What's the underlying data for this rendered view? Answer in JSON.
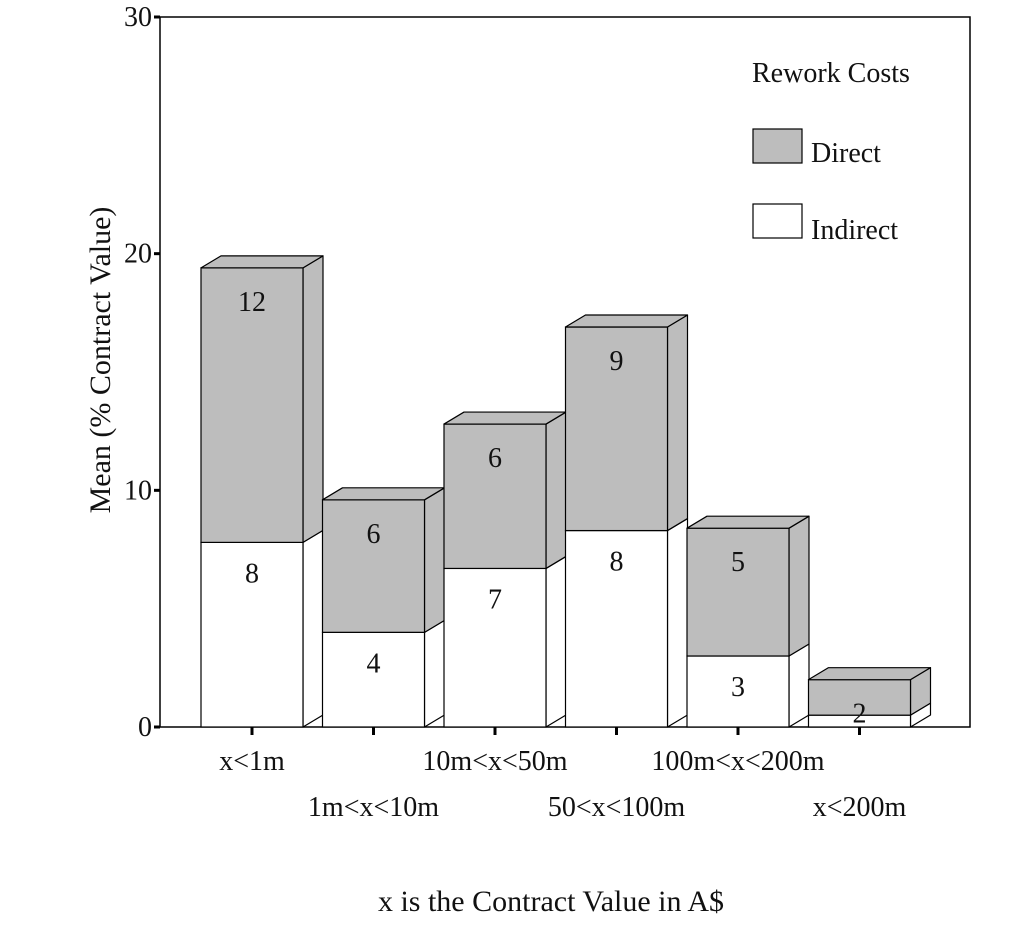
{
  "chart_data": {
    "type": "bar",
    "stacked": true,
    "style": "3d",
    "xlabel": "x is the Contract Value in A$",
    "ylabel": "Mean (% Contract Value)",
    "ylim": [
      0,
      30
    ],
    "yticks": [
      0,
      10,
      20,
      30
    ],
    "grid": false,
    "categories": [
      "x<1m",
      "1m<x<10m",
      "10m<x<50m",
      "50<x<100m",
      "100m<x<200m",
      "x<200m"
    ],
    "legend": {
      "title": "Rework Costs",
      "placement": "top-right"
    },
    "series": [
      {
        "name": "Indirect",
        "color": "#ffffff",
        "values": [
          7.8,
          4.0,
          6.7,
          8.3,
          3.0,
          0.5
        ],
        "labels": [
          "8",
          "4",
          "7",
          "8",
          "3",
          ""
        ]
      },
      {
        "name": "Direct",
        "color": "#bdbdbd",
        "values": [
          11.6,
          5.6,
          6.1,
          8.6,
          5.4,
          1.5
        ],
        "labels": [
          "12",
          "6",
          "6",
          "9",
          "5",
          "2"
        ]
      }
    ]
  }
}
